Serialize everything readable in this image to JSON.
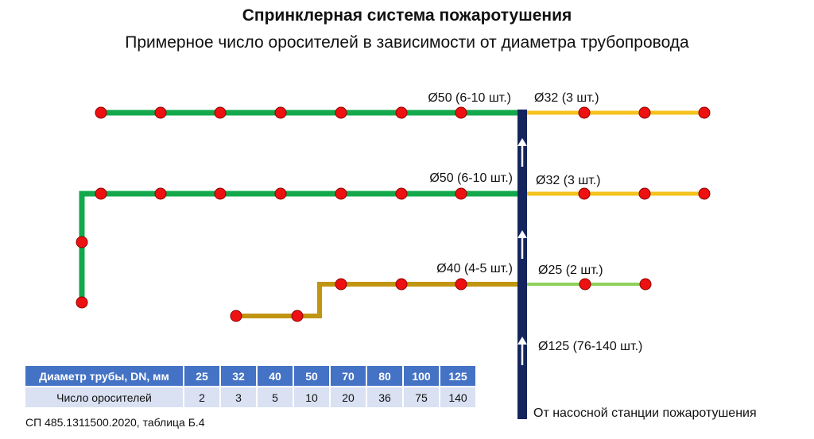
{
  "title": "Спринклерная система пожаротушения",
  "subtitle": "Примерное число оросителей в зависимости от диаметра трубопровода",
  "colors": {
    "riser": "#14245c",
    "dn50": "#12a84b",
    "dn40": "#c09511",
    "dn32": "#f4c21c",
    "dn25": "#8ed15a",
    "sprinkler_fill": "#ee1111",
    "sprinkler_stroke": "#8a0000",
    "arrow": "#ffffff",
    "table_header": "#4472c4",
    "table_row": "#d9e1f2"
  },
  "labels": {
    "row1_left": "Ø50 (6-10 шт.)",
    "row1_right": "Ø32 (3 шт.)",
    "row2_left": "Ø50 (6-10 шт.)",
    "row2_right": "Ø32 (3 шт.)",
    "row3_left": "Ø40 (4-5 шт.)",
    "row3_right": "Ø25 (2 шт.)",
    "riser": "Ø125 (76-140 шт.)"
  },
  "table": {
    "header_label": "Диаметр трубы, DN, мм",
    "row_label": "Число оросителей",
    "diameters": [
      "25",
      "32",
      "40",
      "50",
      "70",
      "80",
      "100",
      "125"
    ],
    "counts": [
      "2",
      "3",
      "5",
      "10",
      "20",
      "36",
      "75",
      "140"
    ]
  },
  "source": "СП 485.1311500.2020, таблица Б.4",
  "origin": "От насосной станции пожаротушения"
}
